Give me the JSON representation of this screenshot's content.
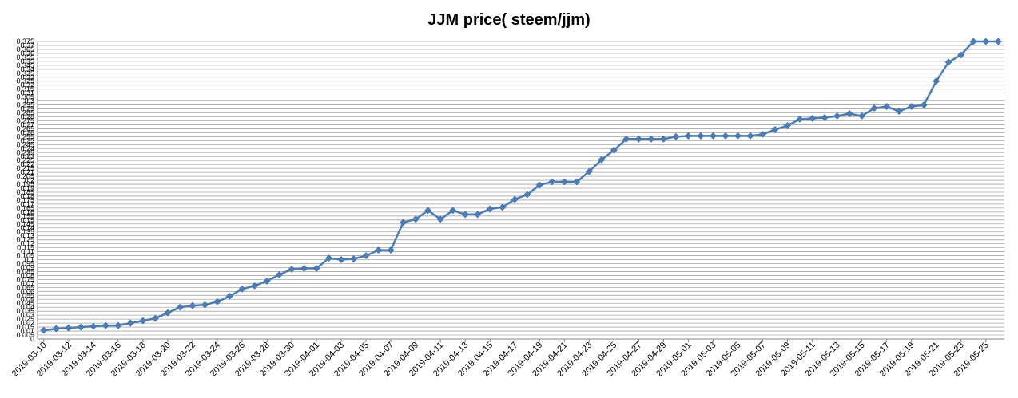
{
  "chart_data": {
    "type": "line",
    "title": "JJM price( steem/jjm)",
    "xlabel": "",
    "ylabel": "",
    "ylim": [
      0,
      0.375
    ],
    "y_tick_step": 0.005,
    "grid": true,
    "legend": "none",
    "colors": {
      "line": "#4a7ebb",
      "marker": "#4a7ebb",
      "grid": "#a6a6a6",
      "axis": "#868686"
    },
    "x_tick_labels": [
      "2019-03-10",
      "2019-03-12",
      "2019-03-14",
      "2019-03-16",
      "2019-03-18",
      "2019-03-20",
      "2019-03-22",
      "2019-03-24",
      "2019-03-26",
      "2019-03-28",
      "2019-03-30",
      "2019-04-01",
      "2019-04-03",
      "2019-04-05",
      "2019-04-07",
      "2019-04-09",
      "2019-04-11",
      "2019-04-13",
      "2019-04-15",
      "2019-04-17",
      "2019-04-19",
      "2019-04-21",
      "2019-04-23",
      "2019-04-25",
      "2019-04-27",
      "2019-04-29",
      "2019-05-01",
      "2019-05-03",
      "2019-05-05",
      "2019-05-07",
      "2019-05-09",
      "2019-05-11",
      "2019-05-13",
      "2019-05-15",
      "2019-05-17",
      "2019-05-19",
      "2019-05-21",
      "2019-05-23",
      "2019-05-25"
    ],
    "x": [
      "2019-03-10",
      "2019-03-11",
      "2019-03-12",
      "2019-03-13",
      "2019-03-14",
      "2019-03-15",
      "2019-03-16",
      "2019-03-17",
      "2019-03-18",
      "2019-03-19",
      "2019-03-20",
      "2019-03-21",
      "2019-03-22",
      "2019-03-23",
      "2019-03-24",
      "2019-03-25",
      "2019-03-26",
      "2019-03-27",
      "2019-03-28",
      "2019-03-29",
      "2019-03-30",
      "2019-03-31",
      "2019-04-01",
      "2019-04-02",
      "2019-04-03",
      "2019-04-04",
      "2019-04-05",
      "2019-04-06",
      "2019-04-07",
      "2019-04-08",
      "2019-04-09",
      "2019-04-10",
      "2019-04-11",
      "2019-04-12",
      "2019-04-13",
      "2019-04-14",
      "2019-04-15",
      "2019-04-16",
      "2019-04-17",
      "2019-04-18",
      "2019-04-19",
      "2019-04-20",
      "2019-04-21",
      "2019-04-22",
      "2019-04-23",
      "2019-04-24",
      "2019-04-25",
      "2019-04-26",
      "2019-04-27",
      "2019-04-28",
      "2019-04-29",
      "2019-04-30",
      "2019-05-01",
      "2019-05-02",
      "2019-05-03",
      "2019-05-04",
      "2019-05-05",
      "2019-05-06",
      "2019-05-07",
      "2019-05-08",
      "2019-05-09",
      "2019-05-10",
      "2019-05-11",
      "2019-05-12",
      "2019-05-13",
      "2019-05-14",
      "2019-05-15",
      "2019-05-16",
      "2019-05-17",
      "2019-05-18",
      "2019-05-19",
      "2019-05-20",
      "2019-05-21",
      "2019-05-22",
      "2019-05-23",
      "2019-05-24",
      "2019-05-25",
      "2019-05-26"
    ],
    "series": [
      {
        "values": [
          0.011,
          0.013,
          0.014,
          0.015,
          0.016,
          0.017,
          0.017,
          0.02,
          0.023,
          0.026,
          0.033,
          0.04,
          0.042,
          0.043,
          0.047,
          0.054,
          0.063,
          0.067,
          0.073,
          0.081,
          0.088,
          0.089,
          0.089,
          0.102,
          0.1,
          0.101,
          0.105,
          0.112,
          0.112,
          0.147,
          0.151,
          0.162,
          0.151,
          0.162,
          0.157,
          0.157,
          0.164,
          0.166,
          0.176,
          0.182,
          0.194,
          0.198,
          0.198,
          0.198,
          0.211,
          0.226,
          0.238,
          0.252,
          0.252,
          0.252,
          0.252,
          0.255,
          0.256,
          0.256,
          0.256,
          0.256,
          0.256,
          0.256,
          0.258,
          0.264,
          0.269,
          0.277,
          0.278,
          0.279,
          0.281,
          0.284,
          0.281,
          0.291,
          0.293,
          0.287,
          0.293,
          0.295,
          0.325,
          0.349,
          0.358,
          0.376,
          0.376,
          0.379
        ]
      }
    ]
  }
}
